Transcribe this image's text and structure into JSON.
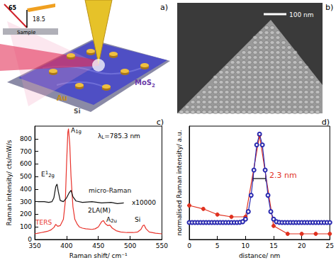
{
  "panels": {
    "a": {
      "label": "a)",
      "inset": {
        "angle_1": "65",
        "angle_2": "18.5",
        "sample": "Sample"
      },
      "sheet": {
        "text": "MoS",
        "sub": "2"
      },
      "particles": "Au",
      "substrate": "Si"
    },
    "b": {
      "label": "b)",
      "scale_bar": "100 nm"
    }
  },
  "chart_data": [
    {
      "type": "line",
      "title": "c)",
      "x_label": "Raman shift/ cm⁻¹",
      "y_label": "Raman intensity/ cts/mW/s",
      "xlim": [
        350,
        550
      ],
      "xticks": [
        350,
        400,
        450,
        500,
        550
      ],
      "ylim": [
        0,
        900
      ],
      "yticks": [
        0,
        100,
        200,
        300,
        400,
        500,
        600,
        700,
        800
      ],
      "grid": false,
      "annotations": [
        {
          "text": "λ",
          "sub": "L",
          "rest": "=785.3 nm"
        },
        {
          "text": "E",
          "sup": "1",
          "sub": "2g"
        },
        {
          "text": "A",
          "sub": "1g"
        },
        {
          "text": "x10000"
        },
        {
          "text": "2LA(M)"
        },
        {
          "text": "A",
          "sub": "2u"
        },
        {
          "text": "Si"
        }
      ],
      "series": [
        {
          "name": "TERS",
          "color": "#e8322b",
          "marker": "none",
          "line_style": "solid",
          "x": [
            350,
            355,
            360,
            365,
            370,
            375,
            380,
            383,
            386,
            390,
            395,
            398,
            400,
            402,
            403,
            405,
            407,
            410,
            413,
            417,
            420,
            425,
            430,
            440,
            445,
            450,
            455,
            458,
            461,
            465,
            468,
            472,
            478,
            485,
            495,
            505,
            512,
            517,
            520,
            522,
            525,
            530,
            540,
            550
          ],
          "values": [
            45,
            50,
            55,
            60,
            65,
            75,
            95,
            120,
            105,
            110,
            160,
            300,
            600,
            850,
            880,
            760,
            500,
            260,
            160,
            120,
            100,
            90,
            85,
            80,
            85,
            100,
            140,
            150,
            125,
            110,
            115,
            90,
            70,
            60,
            55,
            55,
            60,
            80,
            110,
            115,
            85,
            60,
            50,
            45
          ]
        },
        {
          "name": "micro-Raman",
          "color": "#111111",
          "marker": "none",
          "line_style": "solid",
          "x": [
            355,
            365,
            372,
            377,
            380,
            383,
            385,
            387,
            390,
            395,
            400,
            404,
            407,
            410,
            415,
            425,
            440,
            455,
            470,
            480,
            490
          ],
          "values": [
            300,
            300,
            295,
            300,
            330,
            420,
            440,
            380,
            310,
            300,
            330,
            370,
            390,
            340,
            305,
            295,
            300,
            290,
            295,
            285,
            290
          ]
        }
      ]
    },
    {
      "type": "line",
      "title": "d)",
      "x_label": "distance/ nm",
      "y_label": "normalised Raman intensity/ a.u.",
      "xlim": [
        0,
        25
      ],
      "xticks": [
        0,
        5,
        10,
        15,
        20,
        25
      ],
      "ylim": [
        0,
        1
      ],
      "tick_labels": "x",
      "grid": false,
      "annotations": [
        {
          "text": "2.3 nm"
        }
      ],
      "series": [
        {
          "color": "#e0301e",
          "marker": "circle",
          "line_style": "solid",
          "x": [
            0,
            2.5,
            5,
            7.5,
            10,
            12.5,
            15,
            17.5,
            20,
            22.5,
            25
          ],
          "values": [
            0.3,
            0.27,
            0.22,
            0.2,
            0.2,
            0.92,
            0.12,
            0.05,
            0.05,
            0.05,
            0.05
          ]
        },
        {
          "color": "#2a2ab0",
          "marker": "open_circle",
          "line_style": "solid",
          "x": [
            0,
            0.5,
            1,
            1.5,
            2,
            2.5,
            3,
            3.5,
            4,
            4.5,
            5,
            5.5,
            6,
            6.5,
            7,
            7.5,
            8,
            8.5,
            9,
            9.5,
            10,
            10.5,
            11,
            11.5,
            12,
            12.5,
            13,
            13.5,
            14,
            14.5,
            15,
            15.5,
            16,
            16.5,
            17,
            17.5,
            18,
            18.5,
            19,
            19.5,
            20,
            20.5,
            21,
            21.5,
            22,
            22.5,
            23,
            23.5,
            24,
            24.5,
            25
          ],
          "values": [
            0.15,
            0.15,
            0.15,
            0.15,
            0.15,
            0.15,
            0.15,
            0.15,
            0.15,
            0.15,
            0.15,
            0.15,
            0.15,
            0.15,
            0.15,
            0.15,
            0.15,
            0.15,
            0.151,
            0.157,
            0.18,
            0.246,
            0.39,
            0.612,
            0.834,
            0.93,
            0.834,
            0.612,
            0.39,
            0.246,
            0.18,
            0.157,
            0.151,
            0.15,
            0.15,
            0.15,
            0.15,
            0.15,
            0.15,
            0.15,
            0.15,
            0.15,
            0.15,
            0.15,
            0.15,
            0.15,
            0.15,
            0.15,
            0.15,
            0.15,
            0.15
          ]
        }
      ]
    }
  ]
}
